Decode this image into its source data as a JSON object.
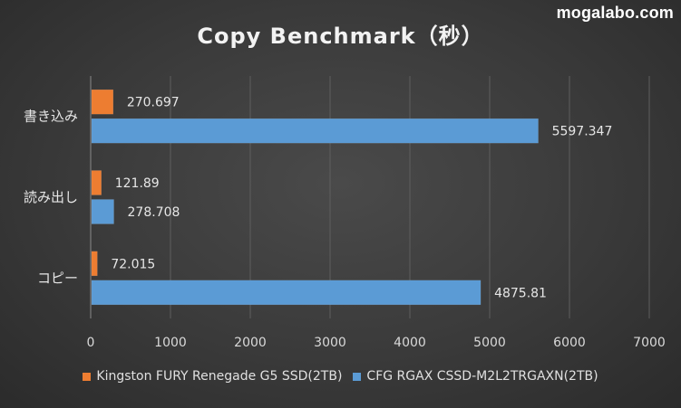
{
  "watermark": "mogalabo.com",
  "chart_data": {
    "type": "bar",
    "orientation": "horizontal",
    "title": "Copy Benchmark（秒）",
    "categories": [
      "書き込み",
      "読み出し",
      "コピー"
    ],
    "series": [
      {
        "name": "Kingston FURY Renegade G5 SSD(2TB)",
        "color": "#ed7d31",
        "values": [
          270.697,
          121.89,
          72.015
        ],
        "labels": [
          "270.697",
          "121.89",
          "72.015"
        ]
      },
      {
        "name": "CFG RGAX CSSD-M2L2TRGAXN(2TB)",
        "color": "#5b9bd5",
        "values": [
          5597.347,
          278.708,
          4875.81
        ],
        "labels": [
          "5597.347",
          "278.708",
          "4875.81"
        ]
      }
    ],
    "xlim": [
      0,
      7000
    ],
    "xticks": [
      "0",
      "1000",
      "2000",
      "3000",
      "4000",
      "5000",
      "6000",
      "7000"
    ],
    "grid": true,
    "legend_position": "bottom"
  }
}
